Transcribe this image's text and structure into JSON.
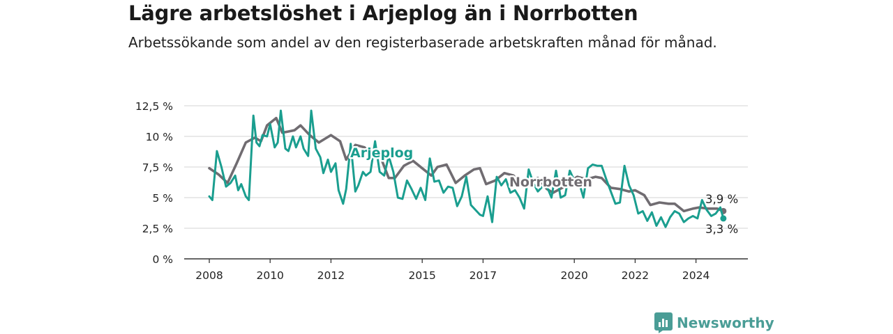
{
  "title": "Lägre arbetslöshet i Arjeplog än i Norrbotten",
  "subtitle": "Arbetssökande som andel av den registerbaserade arbetskraften månad för månad.",
  "brand": {
    "name": "Newsworthy",
    "icon": "newsworthy-logo-icon"
  },
  "colors": {
    "arjeplog": "#1a9e8f",
    "norrbotten": "#706c71",
    "grid": "#dcdcdc",
    "axis": "#333333"
  },
  "chart_data": {
    "type": "line",
    "xlim": [
      2007.75,
      2025.5
    ],
    "ylim": [
      0,
      12.5
    ],
    "y_ticks": [
      0,
      2.5,
      5,
      7.5,
      10,
      12.5
    ],
    "y_tick_labels": [
      "0 %",
      "2,5 %",
      "5 %",
      "7,5 %",
      "10 %",
      "12,5 %"
    ],
    "x_ticks": [
      2008,
      2010,
      2012,
      2015,
      2017,
      2020,
      2022,
      2024
    ],
    "x_tick_labels": [
      "2008",
      "2010",
      "2012",
      "2015",
      "2017",
      "2020",
      "2022",
      "2024"
    ],
    "grid": true,
    "end_labels": {
      "norrbotten": "3,9 %",
      "arjeplog": "3,3 %"
    },
    "series": [
      {
        "name": "Norrbotten",
        "color": "#706c71",
        "x": [
          2008.0,
          2008.3,
          2008.6,
          2008.9,
          2009.2,
          2009.5,
          2009.7,
          2009.9,
          2010.2,
          2010.4,
          2010.6,
          2010.8,
          2011.0,
          2011.3,
          2011.6,
          2011.8,
          2012.0,
          2012.3,
          2012.5,
          2012.8,
          2013.1,
          2013.4,
          2013.6,
          2013.9,
          2014.1,
          2014.4,
          2014.7,
          2015.0,
          2015.3,
          2015.5,
          2015.8,
          2016.1,
          2016.4,
          2016.7,
          2016.9,
          2017.1,
          2017.4,
          2017.7,
          2018.0,
          2018.3,
          2018.5,
          2018.8,
          2019.1,
          2019.3,
          2019.6,
          2019.9,
          2020.1,
          2020.4,
          2020.7,
          2020.9,
          2021.2,
          2021.5,
          2021.8,
          2022.0,
          2022.3,
          2022.5,
          2022.8,
          2023.1,
          2023.3,
          2023.6,
          2023.9,
          2024.1,
          2024.4,
          2024.7,
          2024.9
        ],
        "values": [
          7.4,
          6.9,
          6.2,
          7.8,
          9.5,
          9.9,
          9.6,
          10.9,
          11.5,
          10.3,
          10.4,
          10.5,
          10.9,
          10.1,
          9.5,
          9.8,
          10.1,
          9.6,
          8.1,
          9.3,
          9.1,
          8.4,
          8.5,
          6.6,
          6.6,
          7.6,
          8.0,
          7.4,
          6.8,
          7.5,
          7.7,
          6.2,
          6.8,
          7.3,
          7.4,
          6.1,
          6.4,
          7.0,
          6.8,
          5.9,
          6.2,
          6.6,
          5.7,
          5.4,
          5.8,
          6.4,
          6.7,
          6.5,
          6.7,
          6.6,
          5.8,
          5.7,
          5.5,
          5.6,
          5.2,
          4.4,
          4.6,
          4.5,
          4.5,
          3.9,
          4.1,
          4.2,
          4.1,
          4.1,
          3.9
        ]
      },
      {
        "name": "Arjeplog",
        "color": "#1a9e8f",
        "x": [
          2008.0,
          2008.1,
          2008.25,
          2008.4,
          2008.55,
          2008.7,
          2008.85,
          2008.95,
          2009.05,
          2009.2,
          2009.3,
          2009.45,
          2009.55,
          2009.65,
          2009.75,
          2009.9,
          2010.0,
          2010.15,
          2010.25,
          2010.35,
          2010.5,
          2010.6,
          2010.75,
          2010.85,
          2011.0,
          2011.1,
          2011.25,
          2011.35,
          2011.5,
          2011.65,
          2011.75,
          2011.9,
          2012.0,
          2012.15,
          2012.25,
          2012.4,
          2012.5,
          2012.65,
          2012.8,
          2012.9,
          2013.05,
          2013.15,
          2013.3,
          2013.45,
          2013.6,
          2013.75,
          2013.9,
          2014.05,
          2014.2,
          2014.35,
          2014.5,
          2014.65,
          2014.8,
          2014.95,
          2015.1,
          2015.25,
          2015.4,
          2015.55,
          2015.7,
          2015.85,
          2016.0,
          2016.15,
          2016.3,
          2016.45,
          2016.6,
          2016.75,
          2016.9,
          2017.0,
          2017.15,
          2017.3,
          2017.45,
          2017.6,
          2017.75,
          2017.9,
          2018.05,
          2018.2,
          2018.35,
          2018.5,
          2018.65,
          2018.8,
          2018.95,
          2019.1,
          2019.25,
          2019.4,
          2019.55,
          2019.7,
          2019.85,
          2020.0,
          2020.15,
          2020.3,
          2020.45,
          2020.6,
          2020.75,
          2020.9,
          2021.05,
          2021.2,
          2021.35,
          2021.5,
          2021.65,
          2021.8,
          2021.95,
          2022.1,
          2022.25,
          2022.4,
          2022.55,
          2022.7,
          2022.85,
          2023.0,
          2023.15,
          2023.3,
          2023.45,
          2023.6,
          2023.75,
          2023.9,
          2024.05,
          2024.2,
          2024.35,
          2024.5,
          2024.65,
          2024.8,
          2024.9
        ],
        "values": [
          5.1,
          4.8,
          8.8,
          7.5,
          5.9,
          6.2,
          6.8,
          5.6,
          6.1,
          5.1,
          4.8,
          11.7,
          9.5,
          9.2,
          10.1,
          10.0,
          11.0,
          9.1,
          9.5,
          12.1,
          9.0,
          8.8,
          10.0,
          9.1,
          10.0,
          9.0,
          8.4,
          12.1,
          9.0,
          8.3,
          7.0,
          8.1,
          7.1,
          7.8,
          5.6,
          4.5,
          5.7,
          9.4,
          5.5,
          6.0,
          7.1,
          6.8,
          7.1,
          9.6,
          7.1,
          6.8,
          8.4,
          7.1,
          5.0,
          4.9,
          6.4,
          5.7,
          4.9,
          5.8,
          4.8,
          8.2,
          6.3,
          6.4,
          5.4,
          5.9,
          5.8,
          4.3,
          5.1,
          6.7,
          4.4,
          4.0,
          3.6,
          3.5,
          5.1,
          3.0,
          6.7,
          6.0,
          6.5,
          5.4,
          5.6,
          5.0,
          4.1,
          7.3,
          6.2,
          5.5,
          5.9,
          5.9,
          5.0,
          7.2,
          5.0,
          5.2,
          7.2,
          6.4,
          6.3,
          5.0,
          7.4,
          7.7,
          7.6,
          7.6,
          6.5,
          5.5,
          4.5,
          4.6,
          7.6,
          6.0,
          5.2,
          3.7,
          3.9,
          3.1,
          3.8,
          2.7,
          3.4,
          2.6,
          3.4,
          3.9,
          3.7,
          3.0,
          3.3,
          3.5,
          3.3,
          4.8,
          4.0,
          3.5,
          3.7,
          4.2,
          3.3
        ]
      }
    ]
  }
}
